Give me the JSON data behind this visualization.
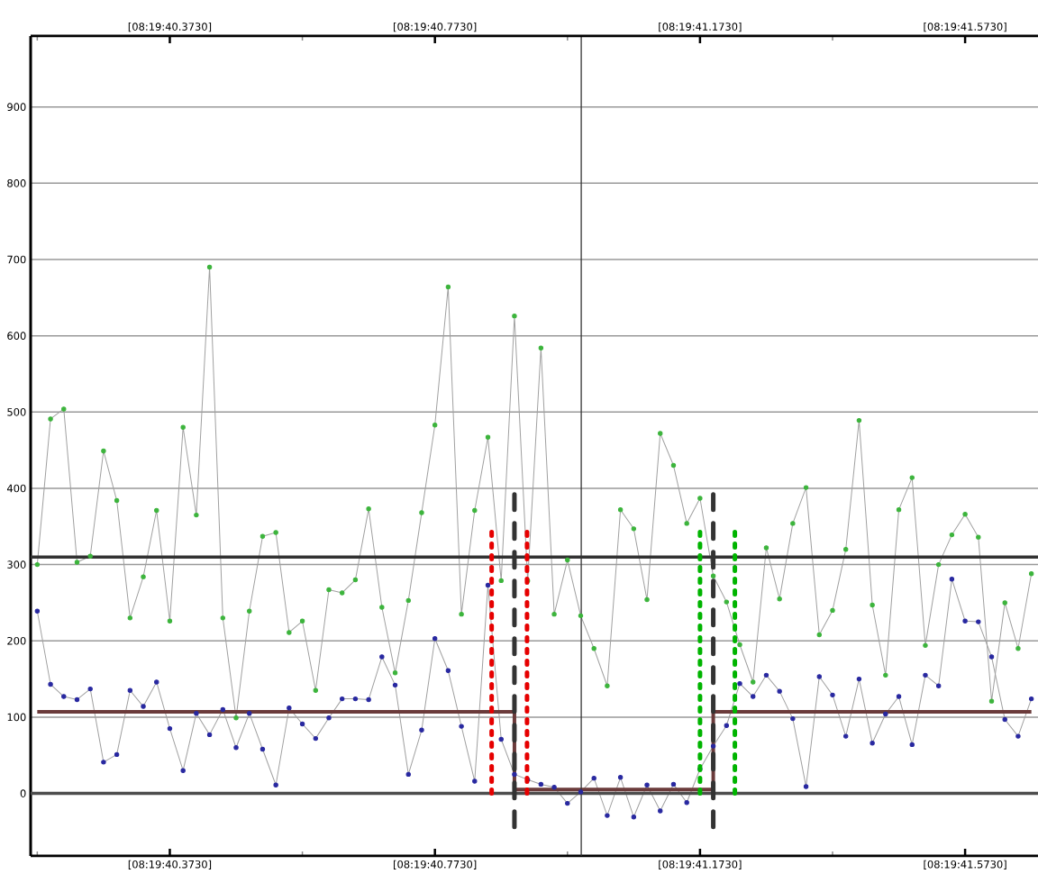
{
  "chart_data": {
    "type": "line",
    "categories": [
      null,
      null,
      null,
      null,
      null,
      null,
      null,
      null,
      null,
      null,
      "[08:19:40.3730]",
      null,
      null,
      null,
      null,
      null,
      null,
      null,
      null,
      null,
      null,
      null,
      null,
      null,
      null,
      null,
      null,
      null,
      null,
      null,
      "[08:19:40.7730]",
      null,
      null,
      null,
      null,
      null,
      null,
      null,
      null,
      null,
      null,
      null,
      null,
      null,
      null,
      null,
      null,
      null,
      null,
      null,
      "[08:19:41.1730]",
      null,
      null,
      null,
      null,
      null,
      null,
      null,
      null,
      null,
      null,
      null,
      null,
      null,
      null,
      null,
      null,
      null,
      null,
      null,
      "[08:19:41.5730]",
      null,
      null,
      null,
      null,
      null
    ],
    "ylim": [
      -82,
      993
    ],
    "yticks": [
      0,
      100,
      200,
      300,
      400,
      500,
      600,
      700,
      800,
      900
    ],
    "grid": "y",
    "marker": "none",
    "series": [
      {
        "color": "#3cb43c",
        "marker": "circle",
        "values": [
          300,
          491,
          504,
          303,
          311,
          449,
          384,
          230,
          284,
          371,
          226,
          480,
          365,
          690,
          230,
          99,
          239,
          337,
          342,
          211,
          226,
          135,
          267,
          263,
          280,
          373,
          244,
          158,
          253,
          368,
          483,
          664,
          235,
          371,
          467,
          279,
          626,
          279,
          584,
          235,
          306,
          233,
          190,
          141,
          372,
          347,
          254,
          472,
          430,
          354,
          387,
          285,
          251,
          195,
          146,
          322,
          255,
          354,
          401,
          208,
          240,
          320,
          489,
          247,
          155,
          372,
          414,
          194,
          300,
          339,
          366,
          336,
          121,
          250,
          190,
          288
        ]
      },
      {
        "color": "#2828a0",
        "marker": "circle",
        "values": [
          239,
          143,
          127,
          123,
          137,
          41,
          51,
          135,
          114,
          146,
          85,
          30,
          105,
          77,
          110,
          60,
          105,
          58,
          11,
          112,
          91,
          72,
          99,
          124,
          124,
          123,
          179,
          142,
          25,
          83,
          203,
          161,
          88,
          16,
          273,
          71,
          25,
          18,
          12,
          8,
          -13,
          2,
          20,
          -29,
          21,
          -31,
          11,
          -23,
          12,
          -12,
          32,
          62,
          89,
          144,
          127,
          155,
          134,
          98,
          9,
          153,
          129,
          75,
          150,
          66,
          104,
          127,
          64,
          155,
          141,
          281,
          226,
          225,
          179,
          97,
          75,
          124
        ]
      },
      {
        "type": "step",
        "color": "#6b3b3b",
        "values": [
          107,
          107,
          107,
          107,
          107,
          107,
          107,
          107,
          107,
          107,
          107,
          107,
          107,
          107,
          107,
          107,
          107,
          107,
          107,
          107,
          107,
          107,
          107,
          107,
          107,
          107,
          107,
          107,
          107,
          107,
          107,
          107,
          107,
          107,
          107,
          107,
          5,
          5,
          5,
          5,
          5,
          5,
          5,
          5,
          5,
          5,
          5,
          5,
          5,
          5,
          5,
          107,
          107,
          107,
          107,
          107,
          107,
          107,
          107,
          107,
          107,
          107,
          107,
          107,
          107,
          107,
          107,
          107,
          107,
          107,
          107,
          107,
          107,
          107,
          107,
          107
        ]
      }
    ],
    "ref_lines": [
      {
        "axis": "y",
        "value": 0,
        "color": "#4d4d4d"
      },
      {
        "axis": "y",
        "value": 310,
        "color": "#333333"
      }
    ]
  }
}
